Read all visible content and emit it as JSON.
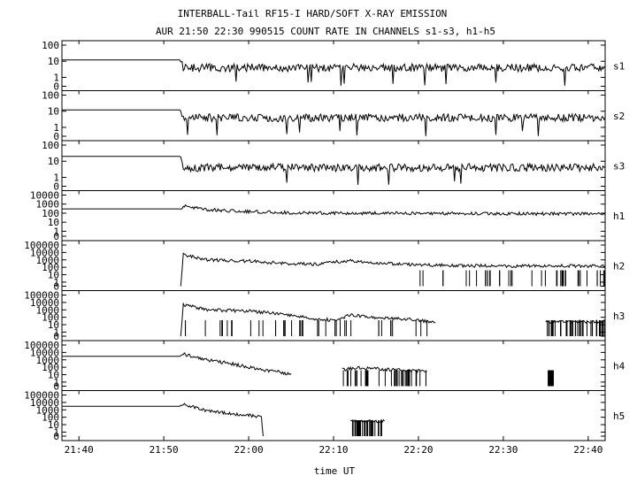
{
  "header": {
    "title": "INTERBALL-Tail RF15-I HARD/SOFT X-RAY EMISSION",
    "subtitle": "AUR 21:50 22:30 990515  COUNT RATE IN CHANNELS s1-s3, h1-h5"
  },
  "chart_data": {
    "type": "line",
    "title": "INTERBALL-Tail RF15-I HARD/SOFT X-RAY EMISSION",
    "subtitle": "AUR 21:50 22:30 990515  COUNT RATE IN CHANNELS s1-s3, h1-h5",
    "xlabel": "time UT",
    "x_ticks": [
      "21:40",
      "21:50",
      "22:00",
      "22:10",
      "22:20",
      "22:30",
      "22:40"
    ],
    "xlim_minutes_ut": [
      1298,
      1362
    ],
    "yscale": "log",
    "grid": false,
    "panels": [
      {
        "name": "s1",
        "y_ticks": [
          "100",
          "10",
          "1",
          "0"
        ],
        "series": [
          {
            "x": [
              "21:38",
              "21:50",
              "21:52",
              "21:52.3",
              "22:00",
              "22:10",
              "22:20",
              "22:30",
              "22:42"
            ],
            "y": [
              12,
              12,
              12,
              4,
              4,
              4,
              4,
              4,
              4
            ]
          }
        ]
      },
      {
        "name": "s2",
        "y_ticks": [
          "100",
          "10",
          "1",
          "0"
        ],
        "series": [
          {
            "x": [
              "21:38",
              "21:50",
              "21:52",
              "21:52.3",
              "22:00",
              "22:10",
              "22:20",
              "22:30",
              "22:42"
            ],
            "y": [
              12,
              12,
              12,
              4,
              4,
              4,
              4,
              4,
              4
            ]
          }
        ]
      },
      {
        "name": "s3",
        "y_ticks": [
          "100",
          "10",
          "1",
          "0"
        ],
        "series": [
          {
            "x": [
              "21:38",
              "21:50",
              "21:52",
              "21:52.3",
              "22:00",
              "22:10",
              "22:20",
              "22:30",
              "22:42"
            ],
            "y": [
              20,
              20,
              20,
              4,
              4,
              4,
              4,
              4,
              4
            ]
          }
        ]
      },
      {
        "name": "h1",
        "y_ticks": [
          "10000",
          "1000",
          "100",
          "10",
          "1",
          "0"
        ],
        "series": [
          {
            "x": [
              "21:38",
              "21:50",
              "21:52",
              "21:52.3",
              "21:55",
              "22:00",
              "22:05",
              "22:10",
              "22:20",
              "22:30",
              "22:42"
            ],
            "y": [
              300,
              300,
              300,
              600,
              250,
              150,
              110,
              100,
              95,
              90,
              80
            ]
          }
        ]
      },
      {
        "name": "h2",
        "y_ticks": [
          "100000",
          "10000",
          "1000",
          "100",
          "10",
          "1",
          "0"
        ],
        "series": [
          {
            "x": [
              "21:52",
              "21:52.3",
              "21:55",
              "22:00",
              "22:05",
              "22:08",
              "22:10",
              "22:12",
              "22:15",
              "22:20",
              "22:30",
              "22:42"
            ],
            "y": [
              0,
              5000,
              1000,
              700,
              300,
              250,
              500,
              800,
              400,
              200,
              150,
              150
            ]
          }
        ]
      },
      {
        "name": "h3",
        "y_ticks": [
          "100000",
          "10000",
          "1000",
          "100",
          "10",
          "1",
          "0"
        ],
        "series": [
          {
            "x": [
              "21:52",
              "21:52.3",
              "21:55",
              "22:00",
              "22:05",
              "22:08",
              "22:10",
              "22:12",
              "22:15",
              "22:19",
              "22:22"
            ],
            "y": [
              0,
              5000,
              1000,
              700,
              200,
              60,
              40,
              200,
              100,
              50,
              20
            ]
          },
          {
            "x": [
              "22:35",
              "22:38",
              "22:42"
            ],
            "y": [
              25,
              25,
              25
            ]
          }
        ]
      },
      {
        "name": "h4",
        "y_ticks": [
          "100000",
          "10000",
          "1000",
          "100",
          "10",
          "1",
          "0"
        ],
        "series": [
          {
            "x": [
              "21:38",
              "21:50",
              "21:52",
              "21:52.3",
              "21:55",
              "21:58",
              "22:00",
              "22:02",
              "22:04",
              "22:05"
            ],
            "y": [
              3000,
              3000,
              3000,
              6000,
              1000,
              300,
              100,
              40,
              20,
              10
            ]
          },
          {
            "x": [
              "22:11",
              "22:13",
              "22:15",
              "22:18",
              "22:21"
            ],
            "y": [
              50,
              80,
              60,
              40,
              30
            ]
          },
          {
            "x": [
              "22:35.3",
              "22:35.9"
            ],
            "y": [
              10,
              10
            ]
          }
        ]
      },
      {
        "name": "h5",
        "y_ticks": [
          "100000",
          "10000",
          "1000",
          "100",
          "10",
          "1",
          "0"
        ],
        "series": [
          {
            "x": [
              "21:38",
              "21:50",
              "21:52",
              "21:52.3",
              "21:55",
              "21:58",
              "22:00",
              "22:01.5",
              "22:01.7"
            ],
            "y": [
              3000,
              3000,
              3000,
              5000,
              800,
              300,
              200,
              100,
              0
            ]
          },
          {
            "x": [
              "22:12",
              "22:14",
              "22:16"
            ],
            "y": [
              30,
              30,
              30
            ]
          }
        ]
      }
    ]
  }
}
